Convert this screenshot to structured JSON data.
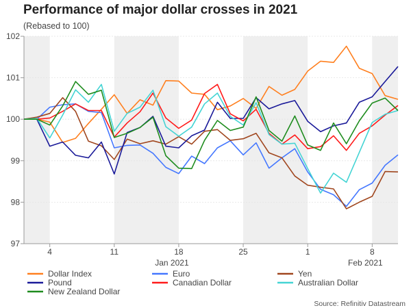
{
  "chart_data": {
    "type": "line",
    "title": "Performance of major dollar crosses in 2021",
    "subtitle": "(Rebased to 100)",
    "source": "Source: Refinitiv Datastream",
    "xlabel": "",
    "ylabel": "",
    "ylim": [
      97,
      102
    ],
    "yticks": [
      "97",
      "98",
      "99",
      "100",
      "101",
      "102"
    ],
    "xticks": [
      {
        "index": 2,
        "label": "4"
      },
      {
        "index": 7,
        "label": "11"
      },
      {
        "index": 12,
        "label": "18"
      },
      {
        "index": 17,
        "label": "25"
      },
      {
        "index": 22,
        "label": "1"
      },
      {
        "index": 27,
        "label": "8"
      }
    ],
    "month_labels": [
      {
        "index": 12,
        "label": "Jan 2021"
      },
      {
        "index": 27,
        "label": "Feb 2021"
      }
    ],
    "shaded_ranges": [
      [
        0,
        2
      ],
      [
        7,
        12
      ],
      [
        17,
        22
      ],
      [
        27,
        29
      ]
    ],
    "grid": true,
    "legend_position": "bottom",
    "series": [
      {
        "name": "Dollar Index",
        "color": "#ff7f1e",
        "values": [
          100,
          100,
          99.93,
          99.44,
          99.54,
          99.9,
          100.24,
          100.59,
          100.14,
          100.47,
          100.34,
          100.93,
          100.92,
          100.63,
          100.6,
          100.23,
          100.32,
          100.5,
          100.26,
          100.79,
          100.58,
          100.72,
          101.16,
          101.4,
          101.37,
          101.76,
          101.23,
          101.1,
          100.57,
          100.48
        ]
      },
      {
        "name": "Euro",
        "color": "#4477ff",
        "values": [
          100,
          100,
          100.29,
          100.35,
          100.37,
          100.19,
          100.16,
          99.31,
          99.37,
          99.38,
          99.18,
          98.84,
          98.69,
          99.11,
          98.93,
          99.31,
          99.48,
          99.14,
          99.43,
          98.82,
          99.07,
          99.29,
          98.73,
          98.31,
          98.18,
          97.9,
          98.3,
          98.46,
          98.89,
          99.14
        ]
      },
      {
        "name": "Yen",
        "color": "#a0461e",
        "values": [
          100,
          100.05,
          100.14,
          100.52,
          100.19,
          99.47,
          99.36,
          99.03,
          99.52,
          99.41,
          99.48,
          99.4,
          99.58,
          99.4,
          99.71,
          99.75,
          99.49,
          99.53,
          99.66,
          99.19,
          99.07,
          98.63,
          98.41,
          98.36,
          98.32,
          97.84,
          98.0,
          98.14,
          98.74,
          98.73
        ]
      },
      {
        "name": "Pound",
        "color": "#1a1a99",
        "values": [
          100,
          100,
          99.35,
          99.45,
          99.13,
          99.07,
          99.45,
          98.68,
          99.68,
          99.8,
          100.07,
          99.35,
          99.31,
          99.6,
          99.74,
          100.41,
          100.02,
          100.02,
          100.52,
          100.25,
          100.37,
          100.45,
          99.95,
          99.7,
          99.84,
          99.91,
          100.41,
          100.54,
          100.91,
          101.27
        ]
      },
      {
        "name": "Canadian Dollar",
        "color": "#ff1a1a",
        "values": [
          100,
          100,
          100.03,
          100.19,
          100.37,
          100.21,
          100.21,
          99.57,
          99.91,
          100.18,
          100.63,
          100.03,
          99.78,
          99.98,
          100.62,
          100.84,
          100.13,
          99.96,
          100.24,
          99.66,
          99.4,
          99.62,
          99.29,
          99.34,
          99.6,
          99.25,
          99.66,
          99.84,
          100.1,
          100.33
        ]
      },
      {
        "name": "Australian Dollar",
        "color": "#44d4d4",
        "values": [
          100,
          100.02,
          99.55,
          100.1,
          100.71,
          100.41,
          100.84,
          99.71,
          100.14,
          100.29,
          100.7,
          99.82,
          99.59,
          99.81,
          100.37,
          100.63,
          100.07,
          99.86,
          100.4,
          99.63,
          99.4,
          99.42,
          98.81,
          98.22,
          98.7,
          98.48,
          99.2,
          99.92,
          100.12,
          100.21
        ]
      },
      {
        "name": "New Zealand Dollar",
        "color": "#1e8c1e",
        "values": [
          100,
          100,
          99.86,
          100.32,
          100.91,
          100.6,
          100.7,
          99.56,
          99.66,
          99.8,
          100.05,
          99.12,
          98.82,
          98.81,
          99.49,
          99.97,
          99.73,
          99.81,
          100.54,
          99.73,
          99.47,
          100.08,
          99.38,
          99.25,
          99.91,
          99.41,
          99.96,
          100.39,
          100.51,
          100.21
        ]
      }
    ]
  }
}
